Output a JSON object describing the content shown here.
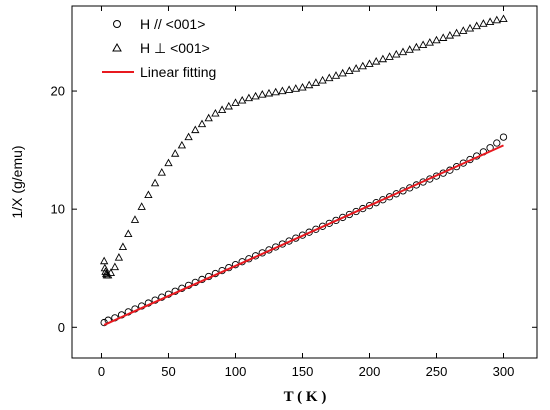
{
  "chart_data": {
    "type": "scatter",
    "xlabel": "T ( K )",
    "ylabel": "1/X (g/emu)",
    "xlim": [
      -22,
      325
    ],
    "ylim": [
      -2.6,
      27.2
    ],
    "x_ticks": [
      0,
      50,
      100,
      150,
      200,
      250,
      300
    ],
    "y_ticks": [
      0,
      10,
      20
    ],
    "grid": false,
    "legend_position": "top-left",
    "colors": {
      "fit": "#e8191f",
      "marker": "#000000"
    },
    "series": [
      {
        "name": "H // <001>",
        "marker": "circle",
        "x": [
          2,
          5,
          10,
          15,
          20,
          25,
          30,
          35,
          40,
          45,
          50,
          55,
          60,
          65,
          70,
          75,
          80,
          85,
          90,
          95,
          100,
          105,
          110,
          115,
          120,
          125,
          130,
          135,
          140,
          145,
          150,
          155,
          160,
          165,
          170,
          175,
          180,
          185,
          190,
          195,
          200,
          205,
          210,
          215,
          220,
          225,
          230,
          235,
          240,
          245,
          250,
          255,
          260,
          265,
          270,
          275,
          280,
          285,
          290,
          295,
          300
        ],
        "y": [
          0.4,
          0.6,
          0.8,
          1.05,
          1.3,
          1.55,
          1.8,
          2.05,
          2.3,
          2.55,
          2.8,
          3.05,
          3.3,
          3.55,
          3.8,
          4.05,
          4.3,
          4.55,
          4.8,
          5.05,
          5.3,
          5.55,
          5.8,
          6.05,
          6.3,
          6.55,
          6.8,
          7.05,
          7.3,
          7.55,
          7.8,
          8.05,
          8.3,
          8.55,
          8.8,
          9.05,
          9.3,
          9.55,
          9.8,
          10.05,
          10.3,
          10.55,
          10.8,
          11.05,
          11.3,
          11.55,
          11.8,
          12.05,
          12.3,
          12.55,
          12.8,
          13.05,
          13.3,
          13.6,
          13.9,
          14.2,
          14.5,
          14.85,
          15.2,
          15.6,
          16.1
        ]
      },
      {
        "name": "H ⊥ <001>",
        "marker": "triangle",
        "x": [
          2,
          2.5,
          3,
          3.5,
          4,
          5,
          7,
          10,
          13,
          16,
          20,
          25,
          30,
          35,
          40,
          45,
          50,
          55,
          60,
          65,
          70,
          75,
          80,
          85,
          90,
          95,
          100,
          105,
          110,
          115,
          120,
          125,
          130,
          135,
          140,
          145,
          150,
          155,
          160,
          165,
          170,
          175,
          180,
          185,
          190,
          195,
          200,
          205,
          210,
          215,
          220,
          225,
          230,
          235,
          240,
          245,
          250,
          255,
          260,
          265,
          270,
          275,
          280,
          285,
          290,
          295,
          300
        ],
        "y": [
          5.6,
          5.0,
          4.7,
          4.5,
          4.4,
          4.4,
          4.6,
          5.1,
          5.9,
          6.8,
          7.9,
          9.1,
          10.2,
          11.2,
          12.2,
          13.1,
          13.9,
          14.7,
          15.4,
          16.1,
          16.7,
          17.2,
          17.7,
          18.1,
          18.4,
          18.7,
          19.0,
          19.2,
          19.4,
          19.55,
          19.7,
          19.8,
          19.9,
          20.0,
          20.1,
          20.2,
          20.3,
          20.5,
          20.7,
          20.9,
          21.1,
          21.3,
          21.5,
          21.7,
          21.9,
          22.1,
          22.3,
          22.5,
          22.7,
          22.9,
          23.1,
          23.3,
          23.5,
          23.7,
          23.9,
          24.1,
          24.3,
          24.5,
          24.7,
          24.9,
          25.1,
          25.3,
          25.5,
          25.7,
          25.85,
          26.0,
          26.1
        ]
      },
      {
        "name": "Linear fitting",
        "marker": "line",
        "x": [
          2,
          300
        ],
        "y": [
          0.2,
          15.4
        ]
      }
    ]
  }
}
